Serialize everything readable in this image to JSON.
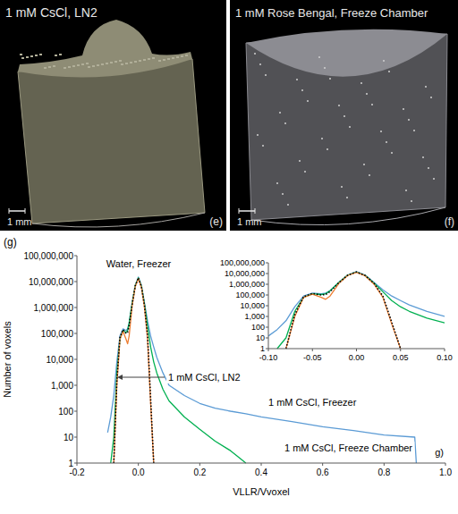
{
  "images": [
    {
      "title": "1 mM CsCl, LN2",
      "scale": "1 mm",
      "letter": "(e)"
    },
    {
      "title": "1 mM Rose Bengal, Freeze Chamber",
      "scale": "1 mm",
      "letter": "(f)"
    }
  ],
  "chart_data": [
    {
      "type": "line",
      "panel_label": "(g)",
      "annotations": [
        "g)"
      ],
      "x_label": "VLLR/Vvoxel",
      "y_label": "Number of voxels",
      "log": "y",
      "grid": false,
      "xlim": [
        -0.2,
        1.0
      ],
      "xticks": [
        -0.2,
        {
          "value": 0,
          "label": "0.0"
        },
        0.2,
        0.4,
        0.6,
        0.8,
        {
          "value": 1,
          "label": "1.0"
        }
      ],
      "ylim": [
        1,
        100000000
      ],
      "yticks": [
        1,
        10,
        100,
        {
          "value": 1000,
          "label": "1,000"
        },
        {
          "value": 10000,
          "label": "10,000"
        },
        {
          "value": 100000,
          "label": "100,000"
        },
        {
          "value": 1000000,
          "label": "1,000,000"
        },
        {
          "value": 10000000,
          "label": "10,000,000"
        },
        {
          "value": 100000000,
          "label": "100,000,000"
        }
      ],
      "x": [
        -0.1,
        -0.09,
        -0.08,
        -0.07,
        -0.06,
        -0.05,
        -0.04,
        -0.035,
        -0.03,
        -0.02,
        -0.01,
        0,
        0.01,
        0.02,
        0.03,
        0.04,
        0.05,
        0.06,
        0.08,
        0.1,
        0.15,
        0.2,
        0.25,
        0.3,
        0.35,
        0.4,
        0.5,
        0.6,
        0.7,
        0.8,
        0.9,
        0.905
      ],
      "series": [
        {
          "name": "1 mM CsCl, Freezer",
          "color": "#5b9bd5",
          "line_style": "solid",
          "values": [
            15,
            60,
            400,
            8000,
            80000,
            150000,
            130000,
            150000,
            250000,
            1500000,
            7000000,
            15000000,
            7000000,
            1500000,
            300000,
            80000,
            30000,
            12000,
            3000,
            1000,
            400,
            200,
            130,
            100,
            80,
            60,
            40,
            25,
            18,
            12,
            10,
            1
          ]
        },
        {
          "name": "1 mM CsCl, Freeze Chamber",
          "color": "#00b050",
          "line_style": "solid",
          "values": [
            null,
            1,
            10,
            3000,
            60000,
            130000,
            110000,
            130000,
            250000,
            1500000,
            7000000,
            14000000,
            6500000,
            1300000,
            200000,
            30000,
            8000,
            3000,
            700,
            250,
            60,
            20,
            7,
            3,
            1,
            null,
            null,
            null,
            null,
            null,
            null,
            null
          ]
        },
        {
          "name": "1 mM CsCl, LN2",
          "color": "#ed7d31",
          "line_style": "solid",
          "values": [
            null,
            null,
            1,
            1000,
            60000,
            120000,
            60000,
            40000,
            80000,
            1200000,
            6500000,
            13000000,
            6000000,
            1000000,
            60000,
            200,
            1,
            null,
            null,
            null,
            null,
            null,
            null,
            null,
            null,
            null,
            null,
            null,
            null,
            null,
            null,
            null
          ]
        },
        {
          "name": "Water, Freezer",
          "color": "#000000",
          "line_style": "dotted",
          "values": [
            null,
            null,
            1,
            1500,
            70000,
            140000,
            100000,
            110000,
            200000,
            1400000,
            7000000,
            14000000,
            6500000,
            1200000,
            80000,
            300,
            1,
            null,
            null,
            null,
            null,
            null,
            null,
            null,
            null,
            null,
            null,
            null,
            null,
            null,
            null,
            null
          ]
        }
      ]
    },
    {
      "type": "line",
      "log": "y",
      "grid": false,
      "xlim": [
        -0.1,
        0.1
      ],
      "xticks": [
        {
          "value": -0.1,
          "label": "-0.10"
        },
        -0.05,
        {
          "value": 0,
          "label": "0.00"
        },
        0.05,
        {
          "value": 0.1,
          "label": "0.10"
        }
      ],
      "ylim": [
        1,
        100000000
      ],
      "yticks": [
        1,
        10,
        100,
        {
          "value": 1000,
          "label": "1,000"
        },
        {
          "value": 10000,
          "label": "10,000"
        },
        {
          "value": 100000,
          "label": "100,000"
        },
        {
          "value": 1000000,
          "label": "1,000,000"
        },
        {
          "value": 10000000,
          "label": "10,000,000"
        },
        {
          "value": 100000000,
          "label": "100,000,000"
        }
      ],
      "x": [
        -0.1,
        -0.09,
        -0.08,
        -0.07,
        -0.06,
        -0.05,
        -0.04,
        -0.035,
        -0.03,
        -0.02,
        -0.01,
        0,
        0.01,
        0.02,
        0.03,
        0.04,
        0.05,
        0.06,
        0.08,
        0.1
      ],
      "series": [
        {
          "color": "#5b9bd5",
          "line_style": "solid",
          "values": [
            15,
            60,
            400,
            8000,
            80000,
            150000,
            130000,
            150000,
            250000,
            1500000,
            7000000,
            15000000,
            7000000,
            1500000,
            300000,
            80000,
            30000,
            12000,
            3000,
            1000
          ]
        },
        {
          "color": "#00b050",
          "line_style": "solid",
          "values": [
            null,
            1,
            10,
            3000,
            60000,
            130000,
            110000,
            130000,
            250000,
            1500000,
            7000000,
            14000000,
            6500000,
            1300000,
            200000,
            30000,
            8000,
            3000,
            700,
            250
          ]
        },
        {
          "color": "#ed7d31",
          "line_style": "solid",
          "values": [
            null,
            null,
            1,
            1000,
            60000,
            120000,
            60000,
            40000,
            80000,
            1200000,
            6500000,
            13000000,
            6000000,
            1000000,
            60000,
            200,
            1,
            null,
            null,
            null
          ]
        },
        {
          "color": "#000000",
          "line_style": "dotted",
          "values": [
            null,
            null,
            1,
            1500,
            70000,
            140000,
            100000,
            110000,
            200000,
            1400000,
            7000000,
            14000000,
            6500000,
            1200000,
            80000,
            300,
            1,
            null,
            null,
            null
          ]
        }
      ]
    }
  ]
}
